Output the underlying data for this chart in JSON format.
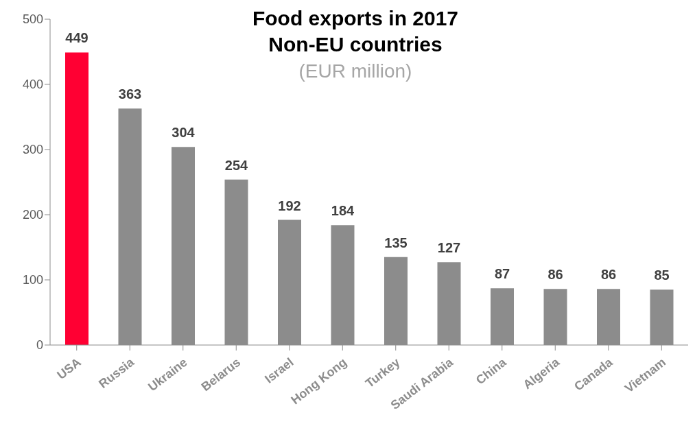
{
  "chart_data": {
    "type": "bar",
    "title": "Food exports in 2017\nNon-EU countries",
    "subtitle": "(EUR million)",
    "categories": [
      "USA",
      "Russia",
      "Ukraine",
      "Belarus",
      "Israel",
      "Hong Kong",
      "Turkey",
      "Saudi Arabia",
      "China",
      "Algeria",
      "Canada",
      "Vietnam"
    ],
    "values": [
      449,
      363,
      304,
      254,
      192,
      184,
      135,
      127,
      87,
      86,
      86,
      85
    ],
    "colors": [
      "#ff0033",
      "#8c8c8c",
      "#8c8c8c",
      "#8c8c8c",
      "#8c8c8c",
      "#8c8c8c",
      "#8c8c8c",
      "#8c8c8c",
      "#8c8c8c",
      "#8c8c8c",
      "#8c8c8c",
      "#8c8c8c"
    ],
    "ylim": [
      0,
      500
    ],
    "yticks": [
      0,
      100,
      200,
      300,
      400,
      500
    ],
    "data_labels": true,
    "grid": false,
    "legend": false
  }
}
